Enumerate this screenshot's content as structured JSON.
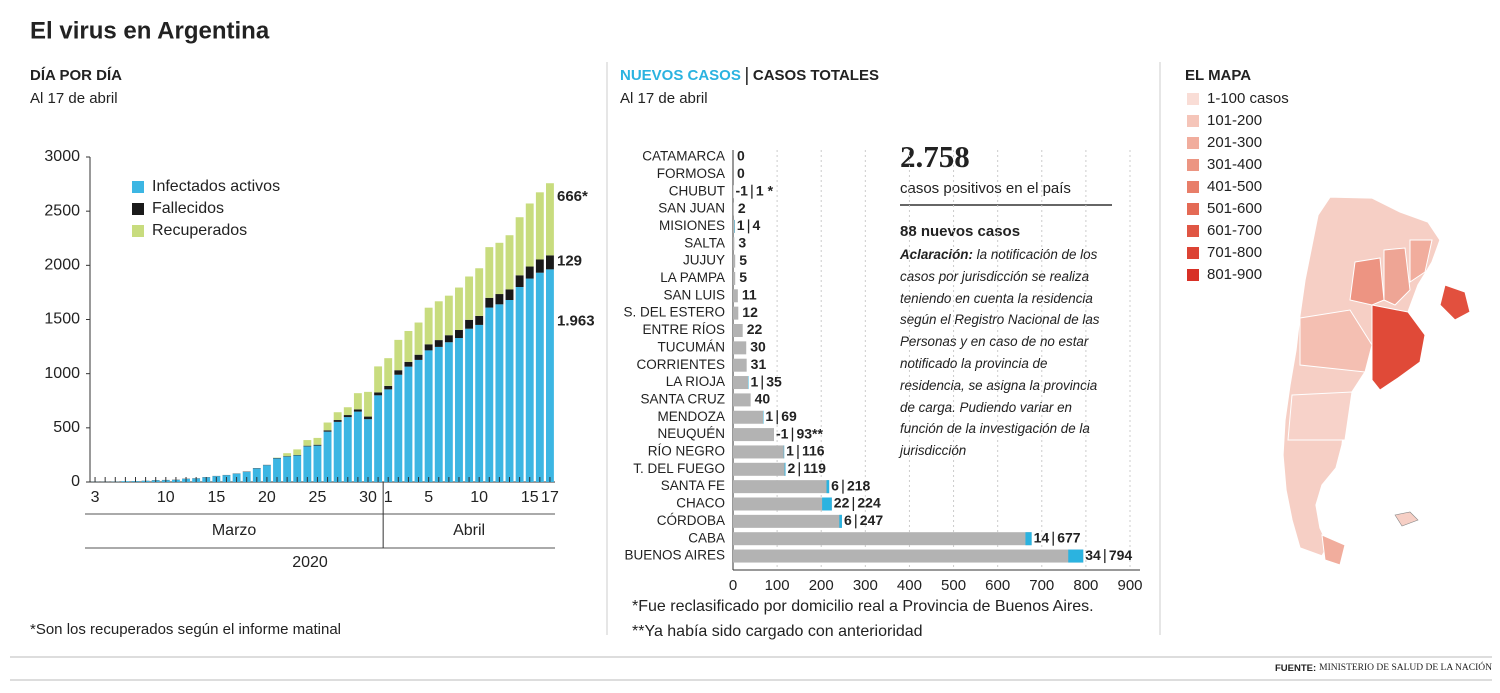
{
  "title": "El virus en Argentina",
  "chart_data": [
    {
      "type": "bar",
      "stacked": true,
      "heading": "DÍA POR DÍA",
      "subtitle": "Al 17 de abril",
      "categories": [
        "3",
        null,
        null,
        null,
        null,
        null,
        null,
        "10",
        null,
        null,
        null,
        null,
        "15",
        null,
        null,
        null,
        null,
        "20",
        null,
        null,
        null,
        null,
        "25",
        null,
        null,
        null,
        null,
        "30",
        null,
        "1",
        null,
        null,
        null,
        "5",
        null,
        null,
        null,
        null,
        "10",
        null,
        null,
        null,
        null,
        "15",
        null,
        "17"
      ],
      "series": [
        {
          "name": "Infectados activos",
          "color": "#3cb6e3",
          "values": [
            1,
            1,
            2,
            8,
            8,
            11,
            15,
            17,
            19,
            29,
            32,
            43,
            54,
            63,
            77,
            94,
            125,
            155,
            218,
            235,
            245,
            329,
            336,
            465,
            555,
            599,
            650,
            580,
            800,
            855,
            990,
            1065,
            1127,
            1215,
            1247,
            1290,
            1329,
            1415,
            1450,
            1610,
            1640,
            1680,
            1800,
            1878,
            1932,
            1963
          ],
          "value_labels": [
            null,
            null,
            null,
            null,
            null,
            null,
            null,
            null,
            null,
            null,
            null,
            null,
            null,
            null,
            null,
            null,
            null,
            null,
            null,
            null,
            null,
            null,
            null,
            null,
            null,
            null,
            null,
            null,
            null,
            null,
            null,
            null,
            null,
            null,
            null,
            null,
            null,
            null,
            null,
            null,
            null,
            null,
            null,
            null,
            null,
            "1.963"
          ]
        },
        {
          "name": "Fallecidos",
          "color": "#1a1a1a",
          "values": [
            0,
            0,
            0,
            0,
            1,
            1,
            2,
            2,
            2,
            2,
            2,
            2,
            2,
            2,
            2,
            3,
            3,
            3,
            4,
            4,
            4,
            6,
            8,
            12,
            17,
            19,
            20,
            24,
            27,
            32,
            42,
            44,
            48,
            56,
            63,
            65,
            74,
            82,
            83,
            90,
            95,
            98,
            108,
            111,
            122,
            129
          ],
          "value_labels": [
            null,
            null,
            null,
            null,
            null,
            null,
            null,
            null,
            null,
            null,
            null,
            null,
            null,
            null,
            null,
            null,
            null,
            null,
            null,
            null,
            null,
            null,
            null,
            null,
            null,
            null,
            null,
            null,
            null,
            null,
            null,
            null,
            null,
            null,
            null,
            null,
            null,
            null,
            null,
            null,
            null,
            null,
            null,
            null,
            null,
            "129"
          ]
        },
        {
          "name": "Recuperados",
          "color": "#c8dc7e",
          "values": [
            0,
            0,
            0,
            0,
            0,
            0,
            0,
            0,
            0,
            0,
            0,
            0,
            0,
            0,
            0,
            0,
            0,
            0,
            3,
            27,
            52,
            52,
            63,
            72,
            72,
            72,
            150,
            228,
            240,
            256,
            280,
            285,
            297,
            338,
            358,
            365,
            392,
            400,
            440,
            468,
            473,
            500,
            536,
            582,
            620,
            666
          ],
          "value_labels": [
            null,
            null,
            null,
            null,
            null,
            null,
            null,
            null,
            null,
            null,
            null,
            null,
            null,
            null,
            null,
            null,
            null,
            null,
            null,
            null,
            null,
            null,
            null,
            null,
            null,
            null,
            null,
            null,
            null,
            null,
            null,
            null,
            null,
            null,
            null,
            null,
            null,
            null,
            null,
            null,
            null,
            null,
            null,
            null,
            null,
            "666*"
          ]
        }
      ],
      "ylim": [
        0,
        3000
      ],
      "yticks": [
        0,
        500,
        1000,
        1500,
        2000,
        2500,
        3000
      ],
      "months": [
        "Marzo",
        "Abril"
      ],
      "year": "2020",
      "footnote": "*Son los recuperados según el informe matinal"
    },
    {
      "type": "barh",
      "subtitle": "Al 17 de abril",
      "categories": [
        "CATAMARCA",
        "FORMOSA",
        "CHUBUT",
        "SAN JUAN",
        "MISIONES",
        "SALTA",
        "JUJUY",
        "LA PAMPA",
        "SAN LUIS",
        "S. DEL ESTERO",
        "ENTRE RÍOS",
        "TUCUMÁN",
        "CORRIENTES",
        "LA RIOJA",
        "SANTA CRUZ",
        "MENDOZA",
        "NEUQUÉN",
        "RÍO NEGRO",
        "T. DEL FUEGO",
        "SANTA FE",
        "CHACO",
        "CÓRDOBA",
        "CABA",
        "BUENOS AIRES"
      ],
      "series": [
        {
          "name": "NUEVOS CASOS",
          "color": "#2bb3e0",
          "values": [
            null,
            null,
            -1,
            null,
            1,
            null,
            null,
            null,
            null,
            null,
            null,
            null,
            null,
            1,
            null,
            1,
            -1,
            1,
            2,
            6,
            22,
            6,
            14,
            34
          ]
        },
        {
          "name": "CASOS TOTALES",
          "color": "#b3b3b3",
          "values": [
            0,
            0,
            1,
            2,
            4,
            3,
            5,
            5,
            11,
            12,
            22,
            30,
            31,
            35,
            40,
            69,
            93,
            116,
            119,
            218,
            224,
            247,
            677,
            794
          ],
          "value_labels": [
            null,
            null,
            "1 *",
            null,
            null,
            null,
            null,
            null,
            null,
            null,
            null,
            null,
            null,
            null,
            null,
            null,
            "93**",
            null,
            null,
            null,
            null,
            null,
            null,
            null
          ]
        }
      ],
      "xlim": [
        0,
        900
      ],
      "xticks": [
        0,
        100,
        200,
        300,
        400,
        500,
        600,
        700,
        800,
        900
      ],
      "footnotes": [
        "*Fue reclasificado por domicilio real a Provincia de Buenos Aires.",
        "**Ya había sido cargado con anterioridad"
      ]
    }
  ],
  "summary": {
    "total": "2.758",
    "total_label": "casos positivos en el país",
    "new": "88 nuevos casos",
    "note_label": "Aclaración:",
    "note": "la notificación de los casos por jurisdicción se realiza teniendo en cuenta la residencia según el Registro Nacional de las Personas y en caso de no estar notificado la provincia de residencia, se asigna la provincia de carga. Pudiendo variar en función de la investigación de la jurisdicción"
  },
  "map": {
    "title": "EL MAPA",
    "legend": [
      {
        "label": "1-100 casos",
        "color": "#f9ddd6"
      },
      {
        "label": "101-200",
        "color": "#f5c5b9"
      },
      {
        "label": "201-300",
        "color": "#f1ad9d"
      },
      {
        "label": "301-400",
        "color": "#ec9582"
      },
      {
        "label": "401-500",
        "color": "#e87e69"
      },
      {
        "label": "501-600",
        "color": "#e46a55"
      },
      {
        "label": "601-700",
        "color": "#e05644"
      },
      {
        "label": "701-800",
        "color": "#dc4334"
      },
      {
        "label": "801-900",
        "color": "#d83026"
      }
    ]
  },
  "source": {
    "label": "FUENTE:",
    "text": "MINISTERIO DE SALUD DE LA NACIÓN"
  }
}
